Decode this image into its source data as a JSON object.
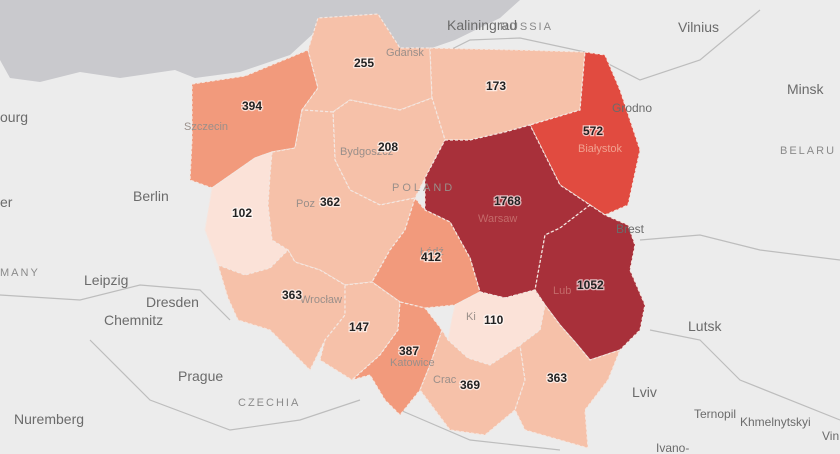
{
  "map": {
    "background_color": "#ececec",
    "sea_color": "#c9c9cd",
    "color_scale": [
      "#fbe2d8",
      "#f6c1a9",
      "#f29a7c",
      "#e14b40",
      "#a8303a"
    ],
    "background_labels": [
      {
        "name": "kaliningrad",
        "text": "Kaliningrad"
      },
      {
        "name": "russia",
        "text": "RUSSIA"
      },
      {
        "name": "vilnius",
        "text": "Vilnius"
      },
      {
        "name": "minsk",
        "text": "Minsk"
      },
      {
        "name": "belarus",
        "text": "BELARU"
      },
      {
        "name": "hamburg",
        "text": "ourg"
      },
      {
        "name": "berlin",
        "text": "Berlin"
      },
      {
        "name": "hannover",
        "text": "er"
      },
      {
        "name": "germany",
        "text": "MANY"
      },
      {
        "name": "leipzig",
        "text": "Leipzig"
      },
      {
        "name": "dresden",
        "text": "Dresden"
      },
      {
        "name": "chemnitz",
        "text": "Chemnitz"
      },
      {
        "name": "prague",
        "text": "Prague"
      },
      {
        "name": "czechia",
        "text": "CZECHIA"
      },
      {
        "name": "nuremberg",
        "text": "Nuremberg"
      },
      {
        "name": "brest",
        "text": "Brest"
      },
      {
        "name": "grodno",
        "text": "Grodno"
      },
      {
        "name": "lutsk",
        "text": "Lutsk"
      },
      {
        "name": "lviv",
        "text": "Lviv"
      },
      {
        "name": "ternopil",
        "text": "Ternopil"
      },
      {
        "name": "khmelnytskyi",
        "text": "Khmelnytskyi"
      },
      {
        "name": "ivano",
        "text": "Ivano-"
      },
      {
        "name": "vin",
        "text": "Vin"
      }
    ],
    "inner_labels": [
      {
        "name": "gdansk",
        "text": "Gdańsk"
      },
      {
        "name": "szczecin",
        "text": "Szczecin"
      },
      {
        "name": "bydgoszcz",
        "text": "Bydgoszcz"
      },
      {
        "name": "poland",
        "text": "POLAND"
      },
      {
        "name": "warsaw",
        "text": "Warsaw"
      },
      {
        "name": "bialystok",
        "text": "Białystok"
      },
      {
        "name": "poznan",
        "text": "Poz"
      },
      {
        "name": "wroclaw",
        "text": "Wrocław"
      },
      {
        "name": "lodz",
        "text": "Łódź"
      },
      {
        "name": "lublin",
        "text": "Lub"
      },
      {
        "name": "kielce",
        "text": "Ki"
      },
      {
        "name": "katowice",
        "text": "Katowice"
      },
      {
        "name": "krakow",
        "text": "Crac"
      }
    ],
    "regions": [
      {
        "name": "zachodniopomorskie",
        "value": 394,
        "color": "#f29a7c"
      },
      {
        "name": "pomorskie",
        "value": 255,
        "color": "#f6c1a9"
      },
      {
        "name": "warminsko-mazurskie",
        "value": 173,
        "color": "#f6c1a9"
      },
      {
        "name": "podlaskie",
        "value": 572,
        "color": "#e14b40"
      },
      {
        "name": "kujawsko-pomorskie",
        "value": 208,
        "color": "#f6c1a9"
      },
      {
        "name": "lubuskie",
        "value": 102,
        "color": "#fbe2d8"
      },
      {
        "name": "wielkopolskie",
        "value": 362,
        "color": "#f6c1a9"
      },
      {
        "name": "mazowieckie",
        "value": 1768,
        "color": "#a8303a"
      },
      {
        "name": "lodzkie",
        "value": 412,
        "color": "#f29a7c"
      },
      {
        "name": "lubelskie",
        "value": 1052,
        "color": "#a8303a"
      },
      {
        "name": "dolnoslaskie",
        "value": 363,
        "color": "#f6c1a9"
      },
      {
        "name": "opolskie",
        "value": 147,
        "color": "#f6c1a9"
      },
      {
        "name": "slaskie",
        "value": 387,
        "color": "#f29a7c"
      },
      {
        "name": "swietokrzyskie",
        "value": 110,
        "color": "#fbe2d8"
      },
      {
        "name": "malopolskie",
        "value": 369,
        "color": "#f6c1a9"
      },
      {
        "name": "podkarpackie",
        "value": 363,
        "color": "#f6c1a9"
      }
    ]
  }
}
